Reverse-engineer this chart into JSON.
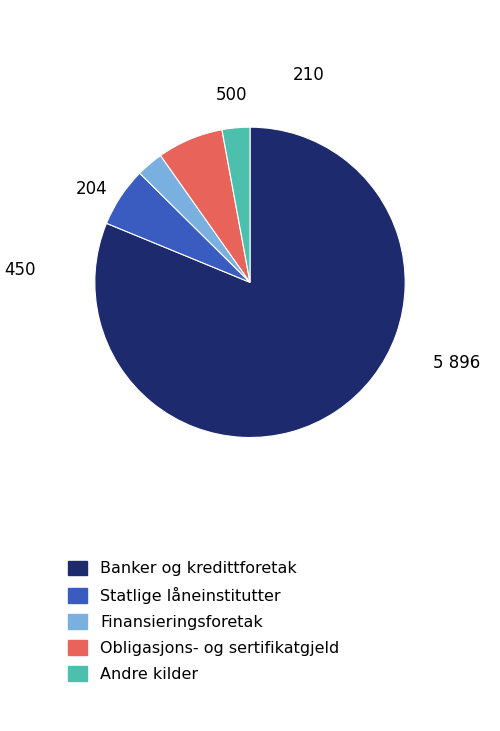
{
  "values": [
    5896,
    450,
    204,
    500,
    210
  ],
  "display_labels": [
    "5 896",
    "450",
    "204",
    "500",
    "210"
  ],
  "legend_labels": [
    "Banker og kredittforetak",
    "Statlige låneinstitutter",
    "Finansieringsforetak",
    "Obligasjons- og sertifikatgjeld",
    "Andre kilder"
  ],
  "colors": [
    "#1e2a6e",
    "#3a5bbf",
    "#7ab0e0",
    "#e8635a",
    "#4dbfad"
  ],
  "background_color": "#ffffff",
  "label_fontsize": 12,
  "legend_fontsize": 11.5
}
